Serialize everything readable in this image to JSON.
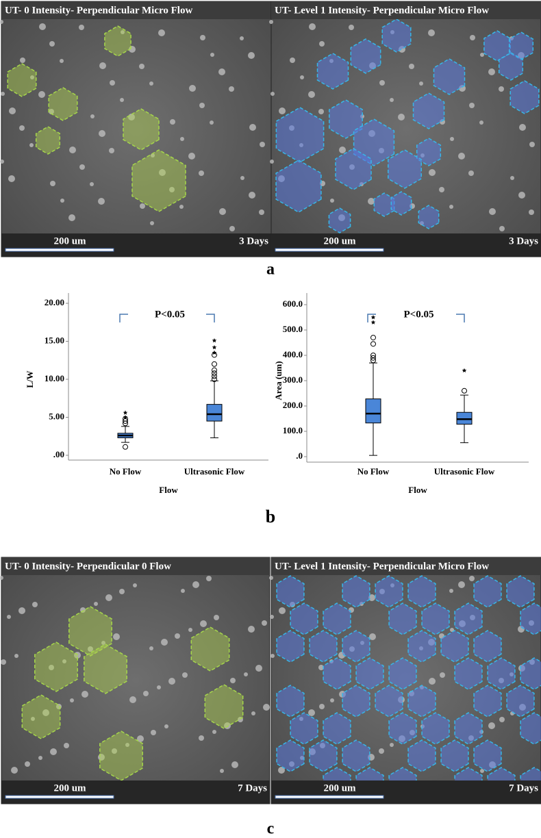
{
  "panel_a": {
    "label": "a",
    "images": [
      {
        "title": "UT- 0 Intensity- Perpendicular Micro Flow",
        "scale": "200 um",
        "time": "3 Days"
      },
      {
        "title": "UT- Level 1 Intensity- Perpendicular Micro Flow",
        "scale": "200 um",
        "time": "3 Days"
      }
    ]
  },
  "panel_b": {
    "label": "b"
  },
  "chart_data": [
    {
      "type": "box",
      "ylabel": "L/W",
      "xlabel": "Flow",
      "annotation": "P<0.05",
      "categories": [
        "No Flow",
        "Ultrasonic Flow"
      ],
      "ylim": [
        0,
        20
      ],
      "yticks": [
        {
          "value": 0,
          "label": ".00"
        },
        {
          "value": 5,
          "label": "5.00"
        },
        {
          "value": 10,
          "label": "10.00"
        },
        {
          "value": 15,
          "label": "15.00"
        },
        {
          "value": 20,
          "label": "20.00"
        }
      ],
      "color": "#4a86d8",
      "boxes": [
        {
          "min": 1.7,
          "q1": 2.3,
          "median": 2.6,
          "q3": 2.9,
          "max": 3.8,
          "outliers": [
            1.1,
            4.2,
            4.5,
            4.8
          ],
          "extremes": [
            5.0,
            5.6
          ]
        },
        {
          "min": 2.3,
          "q1": 4.5,
          "median": 5.4,
          "q3": 6.7,
          "max": 9.8,
          "outliers": [
            10.0,
            10.4,
            10.8,
            11.2,
            12.0,
            13.2
          ],
          "extremes": [
            13.5,
            14.2,
            15.1
          ]
        }
      ]
    },
    {
      "type": "box",
      "ylabel": "Area (um)",
      "xlabel": "Flow",
      "annotation": "P<0.05",
      "categories": [
        "No Flow",
        "Ultrasonic Flow"
      ],
      "ylim": [
        0,
        600
      ],
      "yticks": [
        {
          "value": 0,
          "label": ".0"
        },
        {
          "value": 100,
          "label": "100.0"
        },
        {
          "value": 200,
          "label": "200.0"
        },
        {
          "value": 300,
          "label": "300.0"
        },
        {
          "value": 400,
          "label": "400.0"
        },
        {
          "value": 500,
          "label": "500.0"
        },
        {
          "value": 600,
          "label": "600.0"
        }
      ],
      "color": "#4a86d8",
      "boxes": [
        {
          "min": 5,
          "q1": 133,
          "median": 170,
          "q3": 228,
          "max": 370,
          "outliers": [
            380,
            390,
            400,
            445,
            470
          ],
          "extremes": [
            530,
            550
          ]
        },
        {
          "min": 55,
          "q1": 128,
          "median": 148,
          "q3": 175,
          "max": 243,
          "outliers": [
            260
          ],
          "extremes": [
            340
          ]
        }
      ]
    }
  ],
  "panel_c": {
    "label": "c",
    "images": [
      {
        "title": "UT- 0 Intensity- Perpendicular 0 Flow",
        "scale": "200 um",
        "time": "7 Days"
      },
      {
        "title": "UT- Level 1 Intensity- Perpendicular Micro Flow",
        "scale": "200 um",
        "time": "7 Days"
      }
    ]
  }
}
